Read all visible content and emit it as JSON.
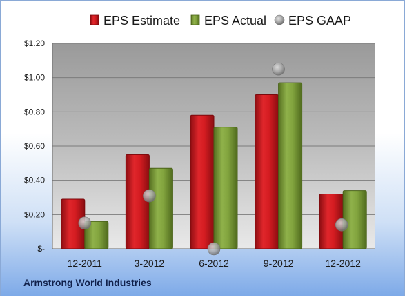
{
  "company": "Armstrong World Industries",
  "chart_data": {
    "type": "bar",
    "title": "",
    "xlabel": "",
    "ylabel": "",
    "categories": [
      "12-2011",
      "3-2012",
      "6-2012",
      "9-2012",
      "12-2012"
    ],
    "series": [
      {
        "name": "EPS Estimate",
        "type": "bar",
        "color": "#c8161c",
        "values": [
          0.29,
          0.55,
          0.78,
          0.9,
          0.32
        ]
      },
      {
        "name": "EPS Actual",
        "type": "bar",
        "color": "#7a9c34",
        "values": [
          0.16,
          0.47,
          0.71,
          0.97,
          0.34
        ]
      },
      {
        "name": "EPS GAAP",
        "type": "marker",
        "color": "#9a9a9a",
        "values": [
          0.15,
          0.31,
          0.0,
          1.05,
          0.14
        ]
      }
    ],
    "ylim": [
      0,
      1.2
    ],
    "yticks": [
      {
        "value": 0,
        "label": "$-"
      },
      {
        "value": 0.2,
        "label": "$0.20"
      },
      {
        "value": 0.4,
        "label": "$0.40"
      },
      {
        "value": 0.6,
        "label": "$0.60"
      },
      {
        "value": 0.8,
        "label": "$0.80"
      },
      {
        "value": 1.0,
        "label": "$1.00"
      },
      {
        "value": 1.2,
        "label": "$1.20"
      }
    ],
    "grid": true,
    "legend": "top"
  }
}
